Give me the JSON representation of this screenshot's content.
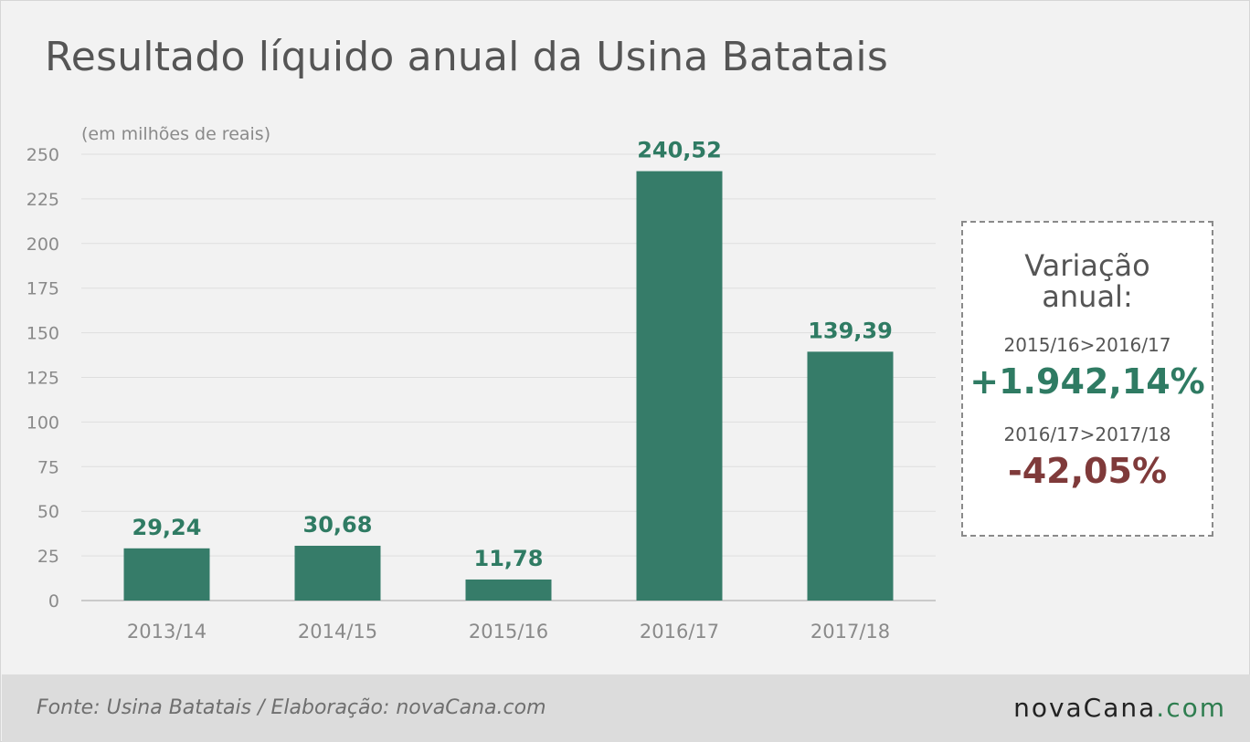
{
  "header": {
    "title": "Resultado líquido anual da Usina Batatais",
    "unit_note": "(em milhões de reais)"
  },
  "chart_data": {
    "type": "bar",
    "categories": [
      "2013/14",
      "2014/15",
      "2015/16",
      "2016/17",
      "2017/18"
    ],
    "values": [
      29.24,
      30.68,
      11.78,
      240.52,
      139.39
    ],
    "data_labels": [
      "29,24",
      "30,68",
      "11,78",
      "240,52",
      "139,39"
    ],
    "ylim": [
      0,
      250
    ],
    "yticks": [
      0,
      25,
      50,
      75,
      100,
      125,
      150,
      175,
      200,
      225,
      250
    ],
    "grid": true,
    "bar_color": "#367c69",
    "label_color": "#2f7b63"
  },
  "panel": {
    "title_line1": "Variação",
    "title_line2": "anual:",
    "comparisons": [
      {
        "label": "2015/16>2016/17",
        "value": "+1.942,14%",
        "color": "#2f7b63"
      },
      {
        "label": "2016/17>2017/18",
        "value": "-42,05%",
        "color": "#7f3a3a"
      }
    ]
  },
  "footer": {
    "source": "Fonte: Usina Batatais / Elaboração: novaCana.com",
    "logo_name": "novaCana",
    "logo_domain": ".com"
  }
}
